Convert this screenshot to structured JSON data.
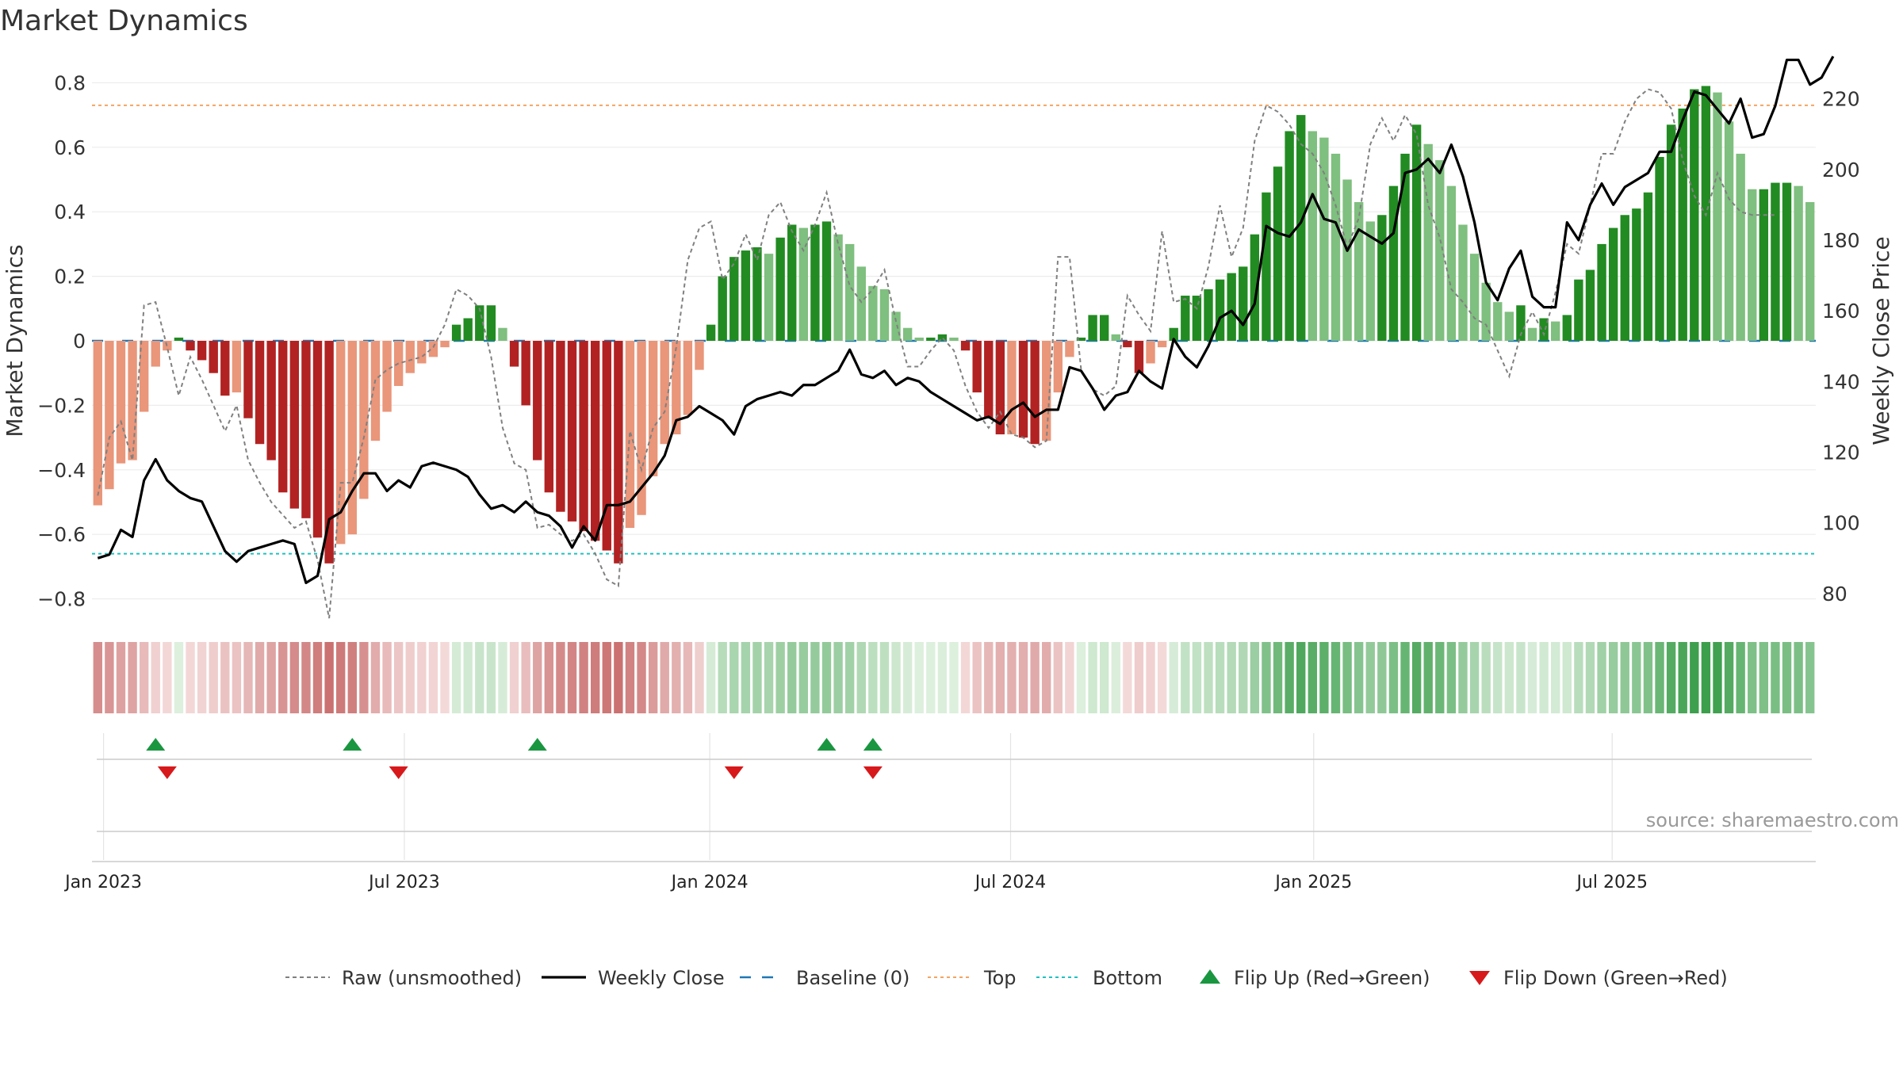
{
  "chart_data": {
    "type": "bar",
    "title": "Market Dynamics",
    "ylabel": "Market Dynamics",
    "y2label": "Weekly Close Price",
    "ylim": [
      -0.86,
      0.86
    ],
    "y2lim": [
      73,
      230
    ],
    "yticks": [
      "0.8",
      "0.6",
      "0.4",
      "0.2",
      "0",
      "−0.2",
      "−0.4",
      "−0.6",
      "−0.8"
    ],
    "y2ticks": [
      "220",
      "200",
      "180",
      "160",
      "140",
      "120",
      "100",
      "80"
    ],
    "xticks": [
      "Jan 2023",
      "Jul 2023",
      "Jan 2024",
      "Jul 2024",
      "Jan 2025",
      "Jul 2025"
    ],
    "top_line": 0.73,
    "bottom_line": -0.66,
    "baseline": 0,
    "source": "source: sharemaestro.com",
    "grid": true,
    "legend_position": "bottom",
    "legend": [
      {
        "key": "raw",
        "label": "Raw (unsmoothed)"
      },
      {
        "key": "close",
        "label": "Weekly Close"
      },
      {
        "key": "base",
        "label": "Baseline (0)"
      },
      {
        "key": "top",
        "label": "Top"
      },
      {
        "key": "bottom",
        "label": "Bottom"
      },
      {
        "key": "up",
        "label": "Flip Up (Red→Green)"
      },
      {
        "key": "down",
        "label": "Flip Down (Green→Red)"
      }
    ],
    "colors": {
      "dark_red": "#b22222",
      "light_red": "#e9967a",
      "dark_green": "#228b22",
      "light_green": "#7fbf7f",
      "raw": "#808080",
      "close": "#000000",
      "baseline": "#1f77b4",
      "top": "#f4a460",
      "bottom": "#20c0c0",
      "flip_up": "#1a9641",
      "flip_down": "#d7191c"
    },
    "series": [
      {
        "name": "Market Dynamics",
        "values": [
          -0.51,
          -0.46,
          -0.38,
          -0.37,
          -0.22,
          -0.08,
          -0.03,
          0.01,
          -0.03,
          -0.06,
          -0.1,
          -0.17,
          -0.16,
          -0.24,
          -0.32,
          -0.37,
          -0.47,
          -0.52,
          -0.55,
          -0.61,
          -0.69,
          -0.63,
          -0.6,
          -0.49,
          -0.31,
          -0.22,
          -0.14,
          -0.1,
          -0.07,
          -0.05,
          -0.02,
          0.05,
          0.07,
          0.11,
          0.11,
          0.04,
          -0.08,
          -0.2,
          -0.37,
          -0.47,
          -0.53,
          -0.56,
          -0.59,
          -0.62,
          -0.65,
          -0.69,
          -0.58,
          -0.54,
          -0.42,
          -0.32,
          -0.29,
          -0.23,
          -0.09,
          0.05,
          0.2,
          0.26,
          0.28,
          0.29,
          0.27,
          0.32,
          0.36,
          0.35,
          0.36,
          0.37,
          0.33,
          0.3,
          0.23,
          0.17,
          0.16,
          0.09,
          0.04,
          0.01,
          0.01,
          0.02,
          0.01,
          -0.03,
          -0.16,
          -0.24,
          -0.29,
          -0.29,
          -0.3,
          -0.32,
          -0.31,
          -0.16,
          -0.05,
          0.01,
          0.08,
          0.08,
          0.02,
          -0.02,
          -0.1,
          -0.07,
          -0.02,
          0.04,
          0.14,
          0.14,
          0.16,
          0.19,
          0.21,
          0.23,
          0.33,
          0.46,
          0.54,
          0.65,
          0.7,
          0.65,
          0.63,
          0.58,
          0.5,
          0.43,
          0.37,
          0.39,
          0.48,
          0.58,
          0.67,
          0.61,
          0.56,
          0.48,
          0.36,
          0.27,
          0.18,
          0.12,
          0.09,
          0.11,
          0.04,
          0.07,
          0.06,
          0.08,
          0.19,
          0.22,
          0.3,
          0.35,
          0.39,
          0.41,
          0.46,
          0.57,
          0.67,
          0.72,
          0.78,
          0.79,
          0.77,
          0.68,
          0.58,
          0.47,
          0.47,
          0.49,
          0.49,
          0.48,
          0.43
        ]
      },
      {
        "name": "Raw (unsmoothed)",
        "values": [
          -0.48,
          -0.3,
          -0.25,
          -0.37,
          0.11,
          0.12,
          -0.02,
          -0.17,
          -0.05,
          -0.12,
          -0.2,
          -0.28,
          -0.2,
          -0.37,
          -0.44,
          -0.5,
          -0.54,
          -0.58,
          -0.56,
          -0.68,
          -0.86,
          -0.44,
          -0.44,
          -0.3,
          -0.12,
          -0.09,
          -0.07,
          -0.06,
          -0.05,
          -0.02,
          0.05,
          0.16,
          0.14,
          0.1,
          -0.05,
          -0.27,
          -0.38,
          -0.4,
          -0.58,
          -0.57,
          -0.6,
          -0.62,
          -0.6,
          -0.66,
          -0.74,
          -0.76,
          -0.28,
          -0.4,
          -0.27,
          -0.22,
          -0.02,
          0.25,
          0.35,
          0.37,
          0.19,
          0.24,
          0.33,
          0.25,
          0.39,
          0.43,
          0.34,
          0.28,
          0.36,
          0.46,
          0.3,
          0.17,
          0.12,
          0.16,
          0.22,
          0.06,
          -0.08,
          -0.08,
          -0.03,
          0.01,
          -0.03,
          -0.14,
          -0.22,
          -0.27,
          -0.22,
          -0.29,
          -0.3,
          -0.33,
          -0.31,
          0.26,
          0.26,
          -0.09,
          -0.15,
          -0.17,
          -0.14,
          0.14,
          0.08,
          0.03,
          0.34,
          0.12,
          0.13,
          0.1,
          0.23,
          0.42,
          0.26,
          0.35,
          0.62,
          0.73,
          0.71,
          0.67,
          0.61,
          0.58,
          0.52,
          0.42,
          0.29,
          0.38,
          0.61,
          0.69,
          0.62,
          0.7,
          0.64,
          0.42,
          0.32,
          0.16,
          0.12,
          0.07,
          0.05,
          -0.03,
          -0.11,
          0.02,
          0.09,
          0.02,
          0.15,
          0.3,
          0.27,
          0.42,
          0.58,
          0.58,
          0.68,
          0.75,
          0.78,
          0.77,
          0.72,
          0.56,
          0.45,
          0.39,
          0.52,
          0.44,
          0.4,
          0.39,
          0.39,
          0.39
        ]
      },
      {
        "name": "Weekly Close",
        "values": [
          90,
          91,
          98,
          96,
          112,
          118,
          112,
          109,
          107,
          106,
          99,
          92,
          89,
          92,
          93,
          94,
          95,
          94,
          83,
          85,
          101,
          103,
          109,
          114,
          114,
          109,
          112,
          110,
          116,
          117,
          116,
          115,
          113,
          108,
          104,
          105,
          103,
          106,
          103,
          102,
          99,
          93,
          99,
          95,
          105,
          105,
          106,
          110,
          114,
          119,
          129,
          130,
          133,
          131,
          129,
          125,
          133,
          135,
          136,
          137,
          136,
          139,
          139,
          141,
          143,
          149,
          142,
          141,
          143,
          139,
          141,
          140,
          137,
          135,
          133,
          131,
          129,
          130,
          128,
          132,
          134,
          130,
          132,
          132,
          144,
          143,
          138,
          132,
          136,
          137,
          143,
          140,
          138,
          152,
          147,
          144,
          150,
          158,
          160,
          156,
          162,
          184,
          182,
          181,
          185,
          193,
          186,
          185,
          177,
          183,
          181,
          179,
          182,
          199,
          200,
          203,
          199,
          207,
          198,
          185,
          168,
          163,
          172,
          177,
          164,
          161,
          161,
          185,
          180,
          190,
          196,
          190,
          195,
          197,
          199,
          205,
          205,
          214,
          222,
          221,
          217,
          213,
          220,
          209,
          210,
          218,
          231,
          231,
          224,
          226,
          232
        ]
      },
      {
        "name": "Flip Up (Red→Green)",
        "weeks": [
          5,
          22,
          38,
          63,
          67
        ]
      },
      {
        "name": "Flip Down (Green→Red)",
        "weeks": [
          6,
          26,
          55,
          67
        ]
      }
    ]
  }
}
